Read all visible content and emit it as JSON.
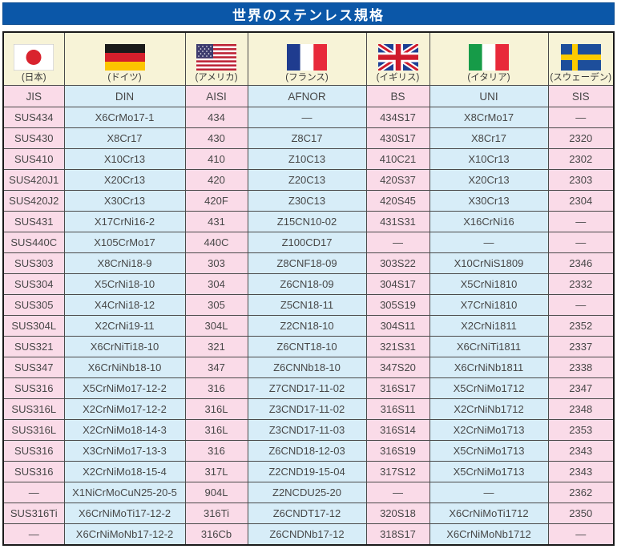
{
  "title": "世界のステンレス規格",
  "colors": {
    "banner_blue": "#0b57a8",
    "column_pink": "#fadbe8",
    "column_blue": "#d7edf8",
    "flag_row_cream": "#f7f3d7",
    "border_dark": "#1a1a1a"
  },
  "columns": [
    {
      "standard": "JIS",
      "country": "(日本)",
      "flag": "japan-flag"
    },
    {
      "standard": "DIN",
      "country": "(ドイツ)",
      "flag": "germany-flag"
    },
    {
      "standard": "AISI",
      "country": "(アメリカ)",
      "flag": "usa-flag"
    },
    {
      "standard": "AFNOR",
      "country": "(フランス)",
      "flag": "france-flag"
    },
    {
      "standard": "BS",
      "country": "(イギリス)",
      "flag": "uk-flag"
    },
    {
      "standard": "UNI",
      "country": "(イタリア)",
      "flag": "italy-flag"
    },
    {
      "standard": "SIS",
      "country": "(スウェーデン)",
      "flag": "sweden-flag"
    }
  ],
  "rows": [
    [
      "SUS434",
      "X6CrMo17-1",
      "434",
      "―",
      "434S17",
      "X8CrMo17",
      "―"
    ],
    [
      "SUS430",
      "X8Cr17",
      "430",
      "Z8C17",
      "430S17",
      "X8Cr17",
      "2320"
    ],
    [
      "SUS410",
      "X10Cr13",
      "410",
      "Z10C13",
      "410C21",
      "X10Cr13",
      "2302"
    ],
    [
      "SUS420J1",
      "X20Cr13",
      "420",
      "Z20C13",
      "420S37",
      "X20Cr13",
      "2303"
    ],
    [
      "SUS420J2",
      "X30Cr13",
      "420F",
      "Z30C13",
      "420S45",
      "X30Cr13",
      "2304"
    ],
    [
      "SUS431",
      "X17CrNi16-2",
      "431",
      "Z15CN10-02",
      "431S31",
      "X16CrNi16",
      "―"
    ],
    [
      "SUS440C",
      "X105CrMo17",
      "440C",
      "Z100CD17",
      "―",
      "―",
      "―"
    ],
    [
      "SUS303",
      "X8CrNi18-9",
      "303",
      "Z8CNF18-09",
      "303S22",
      "X10CrNiS1809",
      "2346"
    ],
    [
      "SUS304",
      "X5CrNi18-10",
      "304",
      "Z6CN18-09",
      "304S17",
      "X5CrNi1810",
      "2332"
    ],
    [
      "SUS305",
      "X4CrNi18-12",
      "305",
      "Z5CN18-11",
      "305S19",
      "X7CrNi1810",
      "―"
    ],
    [
      "SUS304L",
      "X2CrNi19-11",
      "304L",
      "Z2CN18-10",
      "304S11",
      "X2CrNi1811",
      "2352"
    ],
    [
      "SUS321",
      "X6CrNiTi18-10",
      "321",
      "Z6CNT18-10",
      "321S31",
      "X6CrNiTi1811",
      "2337"
    ],
    [
      "SUS347",
      "X6CrNiNb18-10",
      "347",
      "Z6CNNb18-10",
      "347S20",
      "X6CrNiNb1811",
      "2338"
    ],
    [
      "SUS316",
      "X5CrNiMo17-12-2",
      "316",
      "Z7CND17-11-02",
      "316S17",
      "X5CrNiMo1712",
      "2347"
    ],
    [
      "SUS316L",
      "X2CrNiMo17-12-2",
      "316L",
      "Z3CND17-11-02",
      "316S11",
      "X2CrNiNb1712",
      "2348"
    ],
    [
      "SUS316L",
      "X2CrNiMo18-14-3",
      "316L",
      "Z3CND17-11-03",
      "316S14",
      "X2CrNiMo1713",
      "2353"
    ],
    [
      "SUS316",
      "X3CrNiMo17-13-3",
      "316",
      "Z6CND18-12-03",
      "316S19",
      "X5CrNiMo1713",
      "2343"
    ],
    [
      "SUS316",
      "X2CrNiMo18-15-4",
      "317L",
      "Z2CND19-15-04",
      "317S12",
      "X5CrNiMo1713",
      "2343"
    ],
    [
      "―",
      "X1NiCrMoCuN25-20-5",
      "904L",
      "Z2NCDU25-20",
      "―",
      "―",
      "2362"
    ],
    [
      "SUS316Ti",
      "X6CrNiMoTi17-12-2",
      "316Ti",
      "Z6CNDT17-12",
      "320S18",
      "X6CrNiMoTi1712",
      "2350"
    ],
    [
      "―",
      "X6CrNiMoNb17-12-2",
      "316Cb",
      "Z6CNDNb17-12",
      "318S17",
      "X6CrNiMoNb1712",
      "―"
    ]
  ]
}
